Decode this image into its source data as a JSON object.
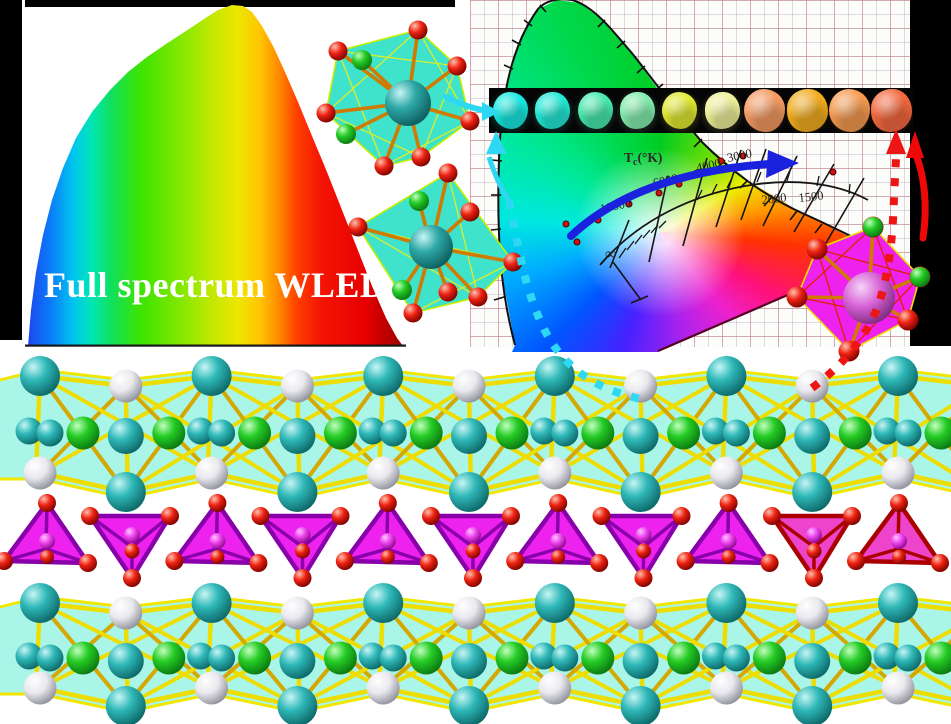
{
  "figure": {
    "type": "graphical-abstract",
    "topic": "full spectrum white LED phosphor"
  },
  "header": {
    "title": "Full spectrum WLED"
  },
  "cie": {
    "tc_t": "T",
    "tc_sub": "c",
    "tc_unit": "(°K)",
    "temperatures": [
      "10000",
      "6000",
      "4000",
      "3000",
      "2000",
      "1500"
    ],
    "infinity": "∞",
    "arrow_color": "#1a22dd",
    "point_color": "#cc1111",
    "outline_color": "#101010",
    "purple_line_color": "#550022"
  },
  "powders": {
    "background": "#050505",
    "colors": [
      "#17e8e0",
      "#22e8d4",
      "#47e8ae",
      "#82ecac",
      "#e0e832",
      "#edf098",
      "#f49a62",
      "#f2ac1e",
      "#f59a50",
      "#f4683e"
    ]
  },
  "arrows": {
    "cyan": "#2fd8f2",
    "red_dashed": "#ee1515",
    "red_solid": "#ee0808"
  },
  "atoms": {
    "teal": "#2fb8b8",
    "green": "#22cc22",
    "white": "#ededf0",
    "red": "#ee2211",
    "magenta": "#ee44ee",
    "orchid": "#d661d6",
    "bond_yellow": "#eedd00",
    "bond_gold": "#d4a800",
    "bond_orange": "#cf7a00"
  },
  "slab": {
    "fill": "#a9f6e9",
    "edge": "#f0e600"
  },
  "tetrahedra": {
    "face": "#ee22ee",
    "edge": "#8800aa",
    "highlight_face": "#ee44cc",
    "highlight_edge": "#aa0000",
    "up_count": 6,
    "down_count": 5
  },
  "polyhedra": {
    "cyan_face": "#3fe2cb",
    "cyan_edge": "#c4ee00",
    "magenta_face": "#ee22ee",
    "magenta_edge": "#f0e000",
    "magenta_inner": "#dd2200"
  },
  "spectrum": {
    "baseline_color": "#181818"
  }
}
